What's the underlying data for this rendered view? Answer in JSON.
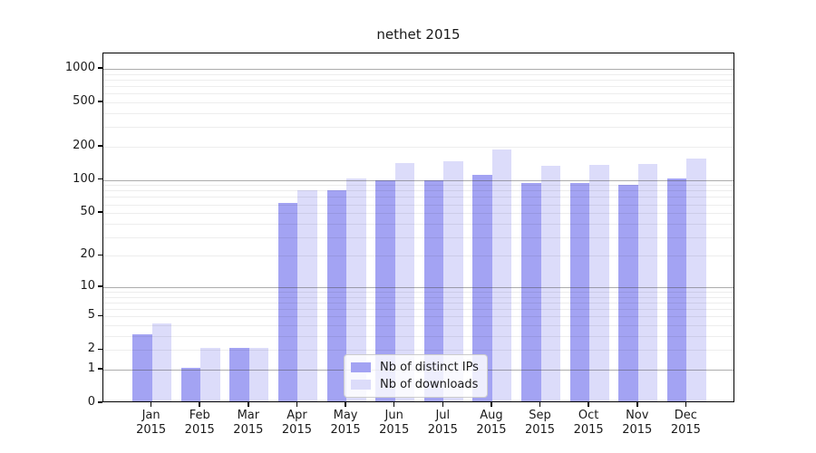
{
  "figure": {
    "background": "#ffffff"
  },
  "chart_data": {
    "type": "bar",
    "title": "nethet 2015",
    "y_scale": "log(1+y)",
    "grid": "on",
    "categories": [
      "Jan",
      "Feb",
      "Mar",
      "Apr",
      "May",
      "Jun",
      "Jul",
      "Aug",
      "Sep",
      "Oct",
      "Nov",
      "Dec"
    ],
    "x_year": "2015",
    "series": [
      {
        "name": "Nb of distinct IPs",
        "color": "#a3a3f3",
        "values": [
          3,
          1,
          2,
          60,
          77,
          95,
          95,
          107,
          90,
          90,
          87,
          100
        ]
      },
      {
        "name": "Nb of downloads",
        "color": "#dcdcfa",
        "values": [
          4,
          2,
          2,
          77,
          100,
          136,
          142,
          180,
          130,
          132,
          135,
          150
        ]
      }
    ],
    "y_ticks": [
      0,
      1,
      2,
      5,
      10,
      20,
      50,
      100,
      200,
      500,
      1000
    ],
    "y_major_gridlines": [
      1,
      10,
      100,
      1000
    ],
    "y_minor_gridlines": [
      2,
      3,
      4,
      5,
      6,
      7,
      8,
      9,
      20,
      30,
      40,
      50,
      60,
      70,
      80,
      90,
      200,
      300,
      400,
      500,
      600,
      700,
      800,
      900
    ],
    "ylim": [
      0,
      1380
    ],
    "legend": {
      "position": "lower center"
    }
  }
}
